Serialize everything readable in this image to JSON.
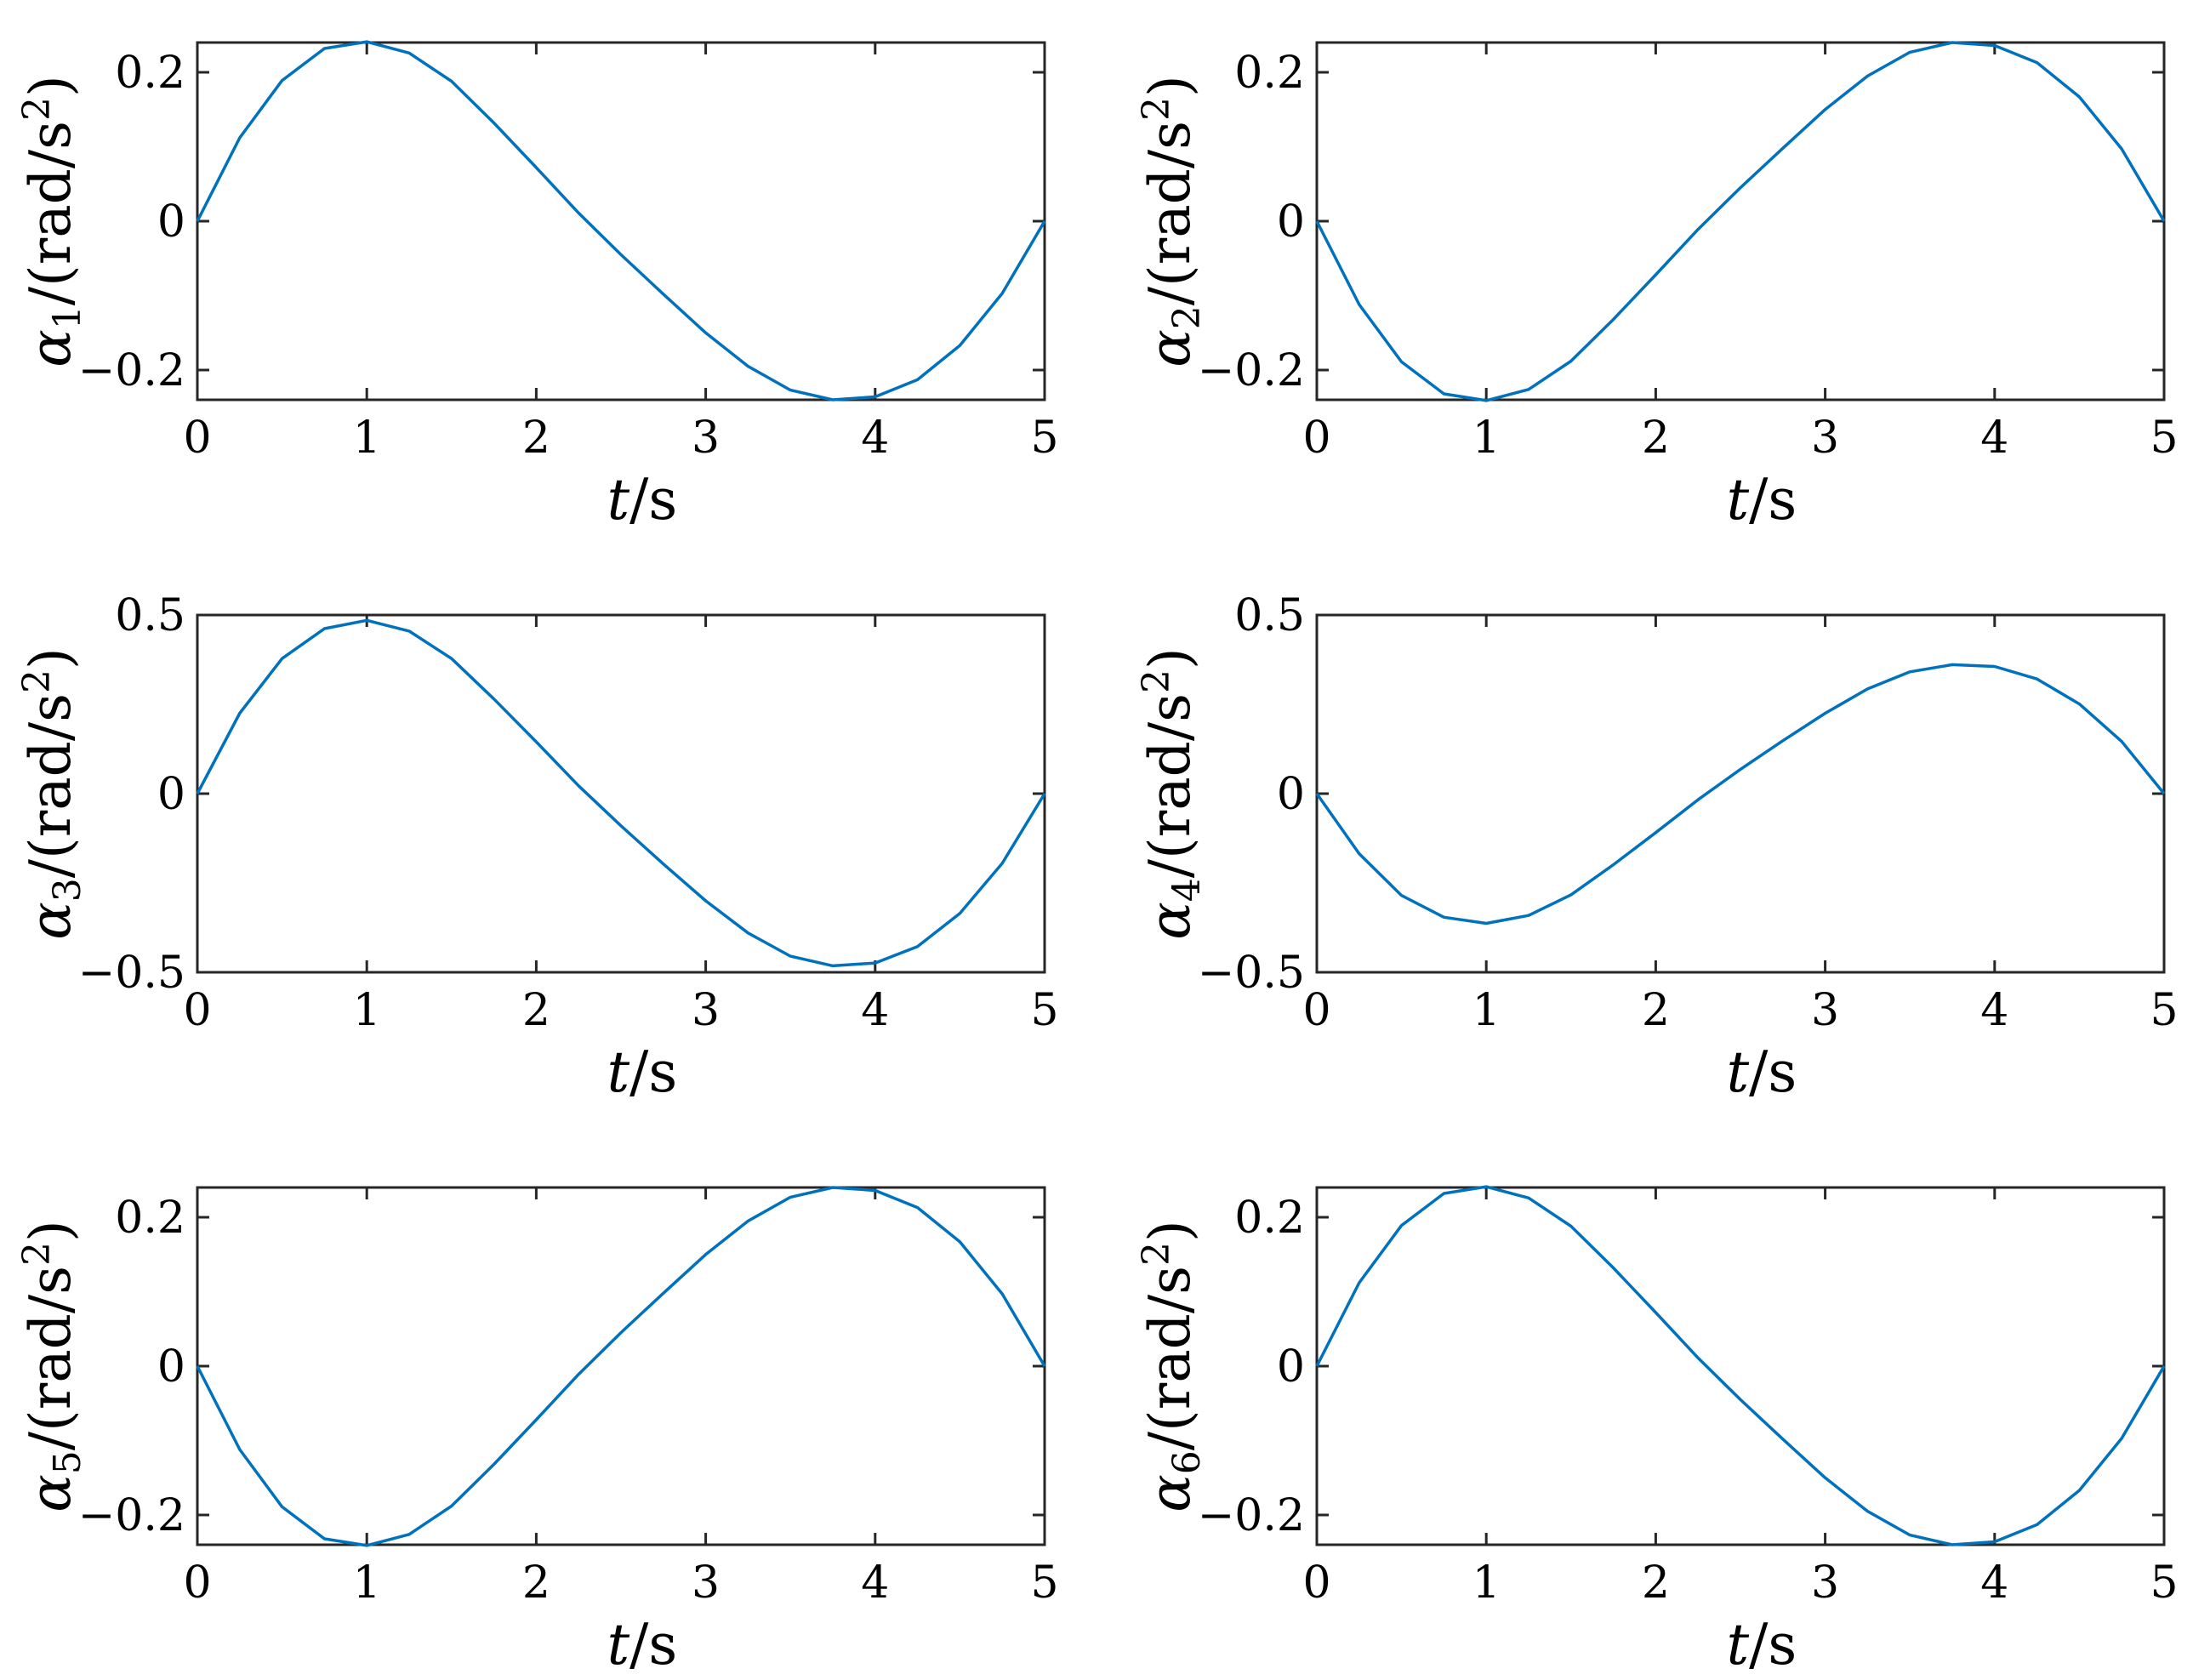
{
  "colors": {
    "series": "#0072BD",
    "axes": "#262626",
    "background": "#ffffff"
  },
  "chart_data": [
    {
      "type": "line",
      "xlabel_var": "t",
      "xlabel_unit": "/s",
      "ylabel_var": "α",
      "ylabel_sub": "1",
      "ylabel_unit": "/(rad/s",
      "ylabel_sup": "2",
      "ylabel_close": ")",
      "xlim": [
        0,
        5
      ],
      "ylim": [
        -0.24,
        0.24
      ],
      "x_ticks": [
        0,
        1,
        2,
        3,
        4,
        5
      ],
      "x_tick_labels": [
        "0",
        "1",
        "2",
        "3",
        "4",
        "5"
      ],
      "y_ticks": [
        -0.2,
        0,
        0.2
      ],
      "y_tick_labels": [
        "−0.2",
        "0",
        "0.2"
      ],
      "x": [
        0,
        0.25,
        0.5,
        0.75,
        1.0,
        1.25,
        1.5,
        1.75,
        2.0,
        2.25,
        2.5,
        2.75,
        3.0,
        3.25,
        3.5,
        3.75,
        4.0,
        4.25,
        4.5,
        4.75,
        5.0
      ],
      "values": [
        0,
        0.112,
        0.189,
        0.232,
        0.241,
        0.226,
        0.188,
        0.132,
        0.072,
        0.011,
        -0.045,
        -0.098,
        -0.15,
        -0.195,
        -0.227,
        -0.24,
        -0.236,
        -0.213,
        -0.167,
        -0.097,
        0
      ]
    },
    {
      "type": "line",
      "xlabel_var": "t",
      "xlabel_unit": "/s",
      "ylabel_var": "α",
      "ylabel_sub": "2",
      "ylabel_unit": "/(rad/s",
      "ylabel_sup": "2",
      "ylabel_close": ")",
      "xlim": [
        0,
        5
      ],
      "ylim": [
        -0.24,
        0.24
      ],
      "x_ticks": [
        0,
        1,
        2,
        3,
        4,
        5
      ],
      "x_tick_labels": [
        "0",
        "1",
        "2",
        "3",
        "4",
        "5"
      ],
      "y_ticks": [
        -0.2,
        0,
        0.2
      ],
      "y_tick_labels": [
        "−0.2",
        "0",
        "0.2"
      ],
      "x": [
        0,
        0.25,
        0.5,
        0.75,
        1.0,
        1.25,
        1.5,
        1.75,
        2.0,
        2.25,
        2.5,
        2.75,
        3.0,
        3.25,
        3.5,
        3.75,
        4.0,
        4.25,
        4.5,
        4.75,
        5.0
      ],
      "values": [
        0,
        -0.112,
        -0.189,
        -0.232,
        -0.241,
        -0.226,
        -0.188,
        -0.132,
        -0.072,
        -0.011,
        0.045,
        0.098,
        0.15,
        0.195,
        0.227,
        0.24,
        0.236,
        0.213,
        0.167,
        0.097,
        0
      ]
    },
    {
      "type": "line",
      "xlabel_var": "t",
      "xlabel_unit": "/s",
      "ylabel_var": "α",
      "ylabel_sub": "3",
      "ylabel_unit": "/(rad/s",
      "ylabel_sup": "2",
      "ylabel_close": ")",
      "xlim": [
        0,
        5
      ],
      "ylim": [
        -0.5,
        0.5
      ],
      "x_ticks": [
        0,
        1,
        2,
        3,
        4,
        5
      ],
      "x_tick_labels": [
        "0",
        "1",
        "2",
        "3",
        "4",
        "5"
      ],
      "y_ticks": [
        -0.5,
        0,
        0.5
      ],
      "y_tick_labels": [
        "−0.5",
        "0",
        "0.5"
      ],
      "x": [
        0,
        0.25,
        0.5,
        0.75,
        1.0,
        1.25,
        1.5,
        1.75,
        2.0,
        2.25,
        2.5,
        2.75,
        3.0,
        3.25,
        3.5,
        3.75,
        4.0,
        4.25,
        4.5,
        4.75,
        5.0
      ],
      "values": [
        0,
        0.225,
        0.378,
        0.462,
        0.485,
        0.455,
        0.378,
        0.265,
        0.145,
        0.022,
        -0.09,
        -0.197,
        -0.3,
        -0.39,
        -0.455,
        -0.482,
        -0.474,
        -0.428,
        -0.335,
        -0.195,
        0
      ]
    },
    {
      "type": "line",
      "xlabel_var": "t",
      "xlabel_unit": "/s",
      "ylabel_var": "α",
      "ylabel_sub": "4",
      "ylabel_unit": "/(rad/s",
      "ylabel_sup": "2",
      "ylabel_close": ")",
      "xlim": [
        0,
        5
      ],
      "ylim": [
        -0.5,
        0.5
      ],
      "x_ticks": [
        0,
        1,
        2,
        3,
        4,
        5
      ],
      "x_tick_labels": [
        "0",
        "1",
        "2",
        "3",
        "4",
        "5"
      ],
      "y_ticks": [
        -0.5,
        0,
        0.5
      ],
      "y_tick_labels": [
        "−0.5",
        "0",
        "0.5"
      ],
      "x": [
        0,
        0.25,
        0.5,
        0.75,
        1.0,
        1.25,
        1.5,
        1.75,
        2.0,
        2.25,
        2.5,
        2.75,
        3.0,
        3.25,
        3.5,
        3.75,
        4.0,
        4.25,
        4.5,
        4.75,
        5.0
      ],
      "values": [
        0,
        -0.168,
        -0.285,
        -0.346,
        -0.363,
        -0.341,
        -0.283,
        -0.199,
        -0.109,
        -0.017,
        0.068,
        0.148,
        0.225,
        0.293,
        0.341,
        0.361,
        0.356,
        0.321,
        0.251,
        0.146,
        0
      ]
    },
    {
      "type": "line",
      "xlabel_var": "t",
      "xlabel_unit": "/s",
      "ylabel_var": "α",
      "ylabel_sub": "5",
      "ylabel_unit": "/(rad/s",
      "ylabel_sup": "2",
      "ylabel_close": ")",
      "xlim": [
        0,
        5
      ],
      "ylim": [
        -0.24,
        0.24
      ],
      "x_ticks": [
        0,
        1,
        2,
        3,
        4,
        5
      ],
      "x_tick_labels": [
        "0",
        "1",
        "2",
        "3",
        "4",
        "5"
      ],
      "y_ticks": [
        -0.2,
        0,
        0.2
      ],
      "y_tick_labels": [
        "−0.2",
        "0",
        "0.2"
      ],
      "x": [
        0,
        0.25,
        0.5,
        0.75,
        1.0,
        1.25,
        1.5,
        1.75,
        2.0,
        2.25,
        2.5,
        2.75,
        3.0,
        3.25,
        3.5,
        3.75,
        4.0,
        4.25,
        4.5,
        4.75,
        5.0
      ],
      "values": [
        0,
        -0.112,
        -0.189,
        -0.232,
        -0.241,
        -0.226,
        -0.188,
        -0.132,
        -0.072,
        -0.011,
        0.045,
        0.098,
        0.15,
        0.195,
        0.227,
        0.24,
        0.236,
        0.213,
        0.167,
        0.097,
        0
      ]
    },
    {
      "type": "line",
      "xlabel_var": "t",
      "xlabel_unit": "/s",
      "ylabel_var": "α",
      "ylabel_sub": "6",
      "ylabel_unit": "/(rad/s",
      "ylabel_sup": "2",
      "ylabel_close": ")",
      "xlim": [
        0,
        5
      ],
      "ylim": [
        -0.24,
        0.24
      ],
      "x_ticks": [
        0,
        1,
        2,
        3,
        4,
        5
      ],
      "x_tick_labels": [
        "0",
        "1",
        "2",
        "3",
        "4",
        "5"
      ],
      "y_ticks": [
        -0.2,
        0,
        0.2
      ],
      "y_tick_labels": [
        "−0.2",
        "0",
        "0.2"
      ],
      "x": [
        0,
        0.25,
        0.5,
        0.75,
        1.0,
        1.25,
        1.5,
        1.75,
        2.0,
        2.25,
        2.5,
        2.75,
        3.0,
        3.25,
        3.5,
        3.75,
        4.0,
        4.25,
        4.5,
        4.75,
        5.0
      ],
      "values": [
        0,
        0.112,
        0.189,
        0.232,
        0.241,
        0.226,
        0.188,
        0.132,
        0.072,
        0.011,
        -0.045,
        -0.098,
        -0.15,
        -0.195,
        -0.227,
        -0.24,
        -0.236,
        -0.213,
        -0.167,
        -0.097,
        0
      ]
    }
  ]
}
